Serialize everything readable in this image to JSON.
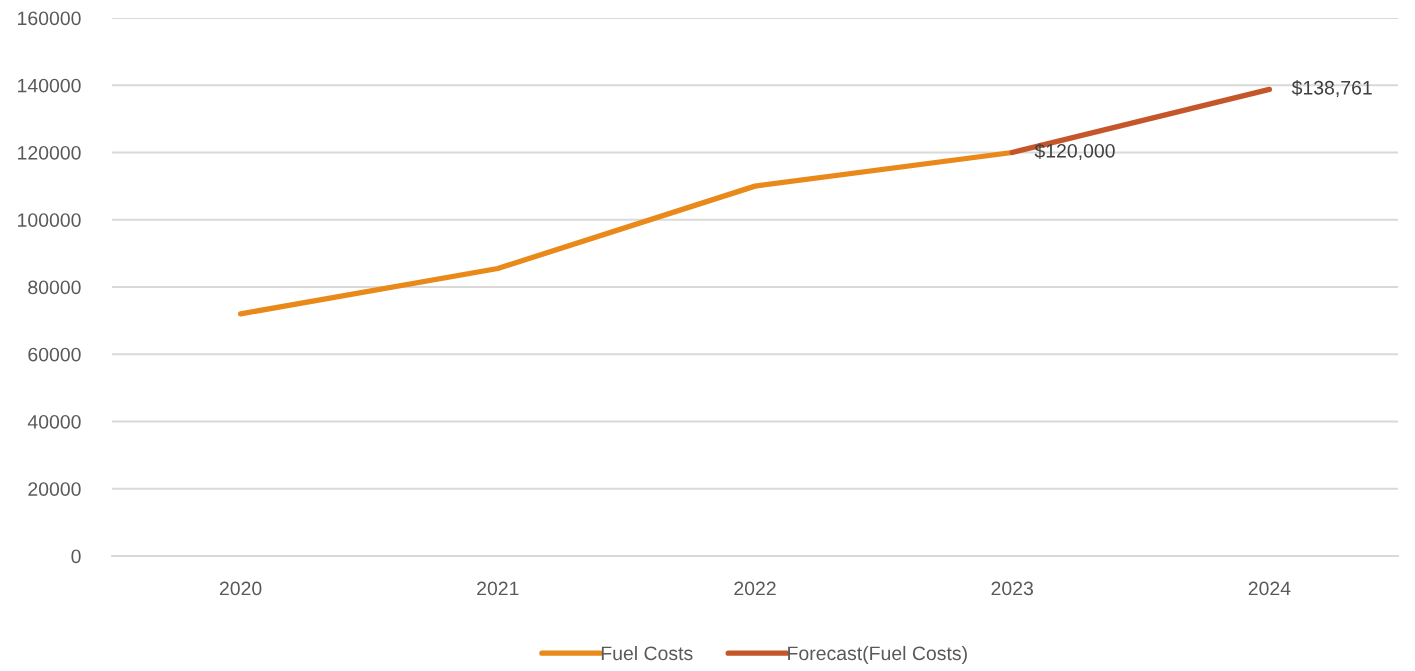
{
  "chart_data": {
    "type": "line",
    "categories": [
      "2020",
      "2021",
      "2022",
      "2023",
      "2024"
    ],
    "series": [
      {
        "name": "Fuel Costs",
        "color": "#e8891a",
        "values": [
          72000,
          85500,
          110000,
          120000,
          null
        ]
      },
      {
        "name": "Forecast(Fuel Costs)",
        "color": "#c5562a",
        "values": [
          null,
          null,
          null,
          120000,
          138761
        ],
        "value_labels": [
          null,
          null,
          null,
          "$120,000",
          "$138,761"
        ]
      }
    ],
    "ylim": [
      0,
      160000
    ],
    "yticks": [
      0,
      20000,
      40000,
      60000,
      80000,
      100000,
      120000,
      140000,
      160000
    ],
    "grid": "y",
    "legend": "bottom"
  }
}
